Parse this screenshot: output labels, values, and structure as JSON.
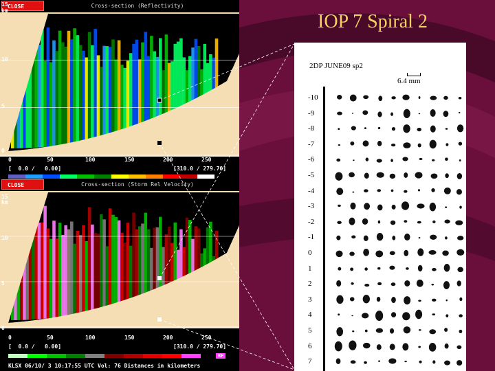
{
  "slide": {
    "title": "IOP 7 Spiral 2"
  },
  "top_panel": {
    "close_label": "CLOSE",
    "title": "Cross-section (Reflectivity)",
    "y_ticks": [
      "15",
      "km",
      "10",
      "5",
      "0"
    ],
    "x_ticks": [
      "0",
      "50",
      "100",
      "150",
      "200",
      "250"
    ],
    "range_left": "[  0.0 /   0.00]",
    "range_right": "[310.0 / 279.70]",
    "colorbar": [
      "#6060c0",
      "#20a0ff",
      "#0050ff",
      "#00ff60",
      "#00c000",
      "#008000",
      "#ffff00",
      "#ffc000",
      "#ff8000",
      "#ff0000",
      "#c00000",
      "#ffffff"
    ]
  },
  "bottom_panel": {
    "close_label": "CLOSE",
    "title": "Cross-section (Storm Rel Velocity)",
    "y_ticks": [
      "15",
      "km",
      "10",
      "5",
      "0"
    ],
    "x_ticks": [
      "0",
      "50",
      "100",
      "150",
      "200",
      "250"
    ],
    "range_left": "[  0.0 /   0.00]",
    "range_right": "[310.0 / 279.70]",
    "colorbar": [
      "#c0ffc0",
      "#00ff00",
      "#00c000",
      "#008000",
      "#808080",
      "#800000",
      "#b00000",
      "#e00000",
      "#ff0000",
      "#ff40ff"
    ],
    "colorbar_end_label": "RF",
    "footer": "KLSX 06/10/ 3 10:17:55 UTC Vol: 76 Distances in kilometers"
  },
  "document": {
    "header": "2DP JUNE09 sp2",
    "scale_label": "6.4 mm",
    "row_labels": [
      "-10",
      "-9",
      "-8",
      "-7",
      "-6",
      "-5",
      "-4",
      "-3",
      "-2",
      "-1",
      "0",
      "1",
      "2",
      "3",
      "4",
      "5",
      "6",
      "7"
    ]
  },
  "colors": {
    "slide_bg": "#6a0f3c",
    "title": "#f5d060",
    "terrain": "#f5deb3"
  }
}
